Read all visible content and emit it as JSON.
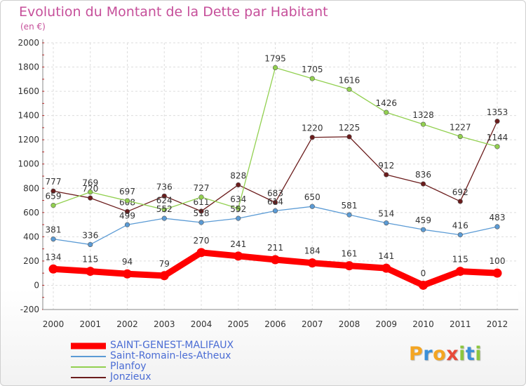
{
  "chart_data": {
    "type": "line",
    "title": "Evolution du Montant de la Dette par Habitant",
    "subtitle": "(en €)",
    "x": [
      "2000",
      "2001",
      "2002",
      "2003",
      "2004",
      "2005",
      "2006",
      "2007",
      "2008",
      "2009",
      "2010",
      "2011",
      "2012"
    ],
    "ylim": [
      -200,
      2000
    ],
    "yticks": [
      "-200",
      "0",
      "200",
      "400",
      "600",
      "800",
      "1000",
      "1200",
      "1400",
      "1600",
      "1800",
      "2000"
    ],
    "grid": true,
    "legend_position": "bottom-left",
    "series": [
      {
        "name": "SAINT-GENEST-MALIFAUX",
        "color": "#ff0000",
        "values": [
          134,
          115,
          94,
          79,
          270,
          241,
          211,
          184,
          161,
          141,
          0,
          115,
          100
        ],
        "labels": [
          "134",
          "115",
          "94",
          "79",
          "270",
          "241",
          "211",
          "184",
          "161",
          "141",
          "0",
          "115",
          "100"
        ]
      },
      {
        "name": "Saint-Romain-les-Atheux",
        "color": "#5b9bd5",
        "values": [
          381,
          336,
          499,
          552,
          518,
          552,
          614,
          650,
          581,
          514,
          459,
          416,
          483
        ],
        "labels": [
          "381",
          "336",
          "499",
          "552",
          "518",
          "552",
          "614",
          "650",
          "581",
          "514",
          "459",
          "416",
          "483"
        ]
      },
      {
        "name": "Planfoy",
        "color": "#92d050",
        "values": [
          659,
          769,
          697,
          624,
          727,
          634,
          1795,
          1705,
          1616,
          1426,
          1328,
          1227,
          1144
        ],
        "labels": [
          "659",
          "769",
          "697",
          "624",
          "727",
          "634",
          "1795",
          "1705",
          "1616",
          "1426",
          "1328",
          "1227",
          "1144"
        ]
      },
      {
        "name": "Jonzieux",
        "color": "#6b1c1c",
        "values": [
          777,
          720,
          608,
          736,
          611,
          828,
          683,
          1220,
          1225,
          912,
          836,
          692,
          1353
        ],
        "labels": [
          "777",
          "720",
          "608",
          "736",
          "611",
          "828",
          "683",
          "1220",
          "1225",
          "912",
          "836",
          "692",
          "1353"
        ]
      }
    ]
  },
  "brand": {
    "letters": [
      "P",
      "r",
      "o",
      "x",
      "i",
      "t",
      "i"
    ],
    "colors": [
      "#f4a522",
      "#3a8fd8",
      "#f4a522",
      "#e84a3a",
      "#8cc63f",
      "#3a8fd8",
      "#8cc63f"
    ]
  }
}
